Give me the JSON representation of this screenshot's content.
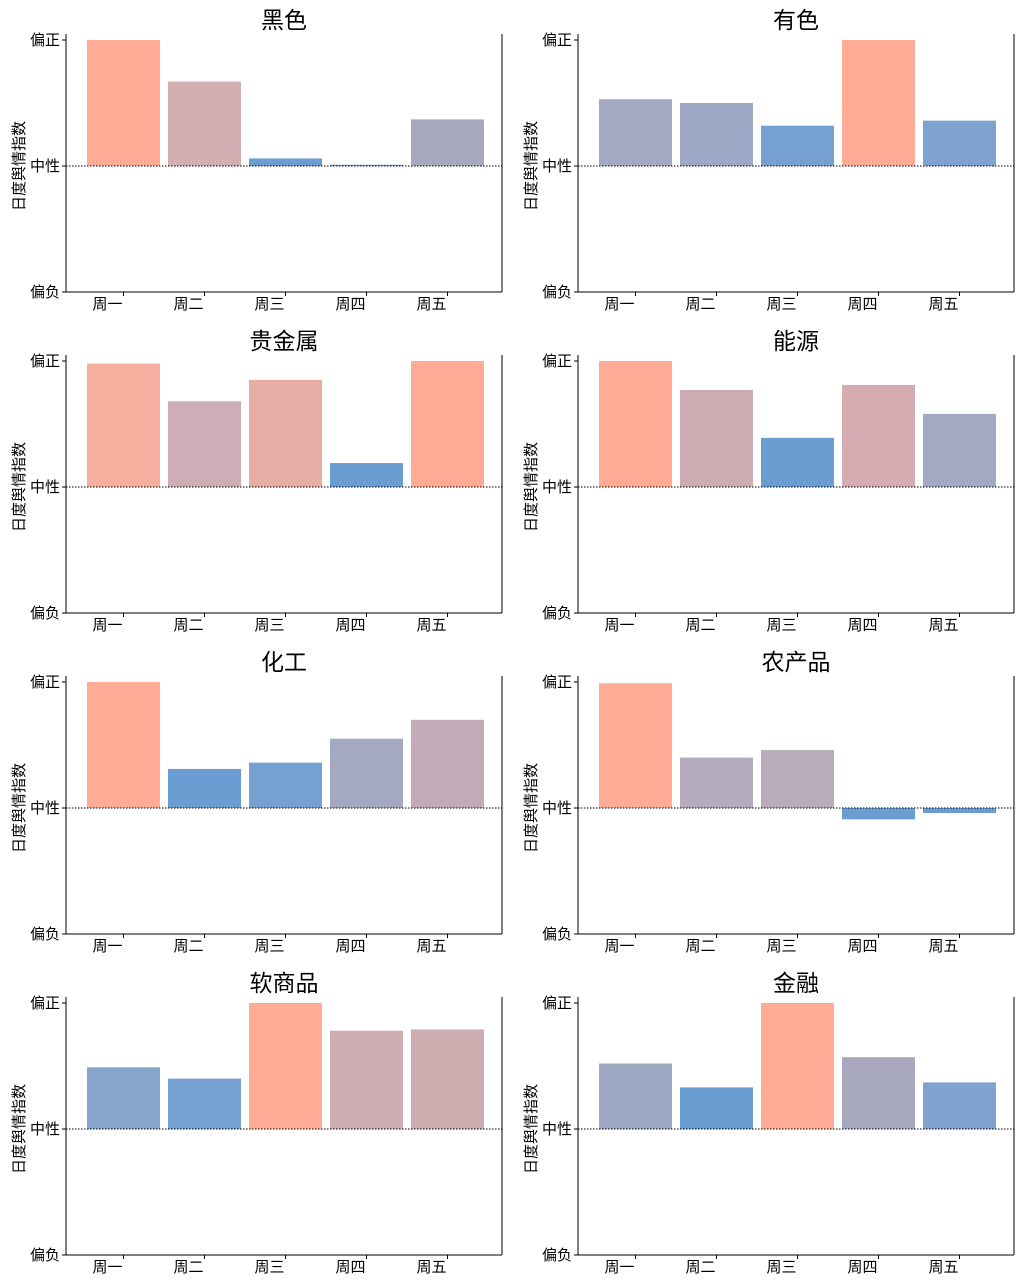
{
  "y_axis_label": "日度舆情指数",
  "y_tick_labels": [
    "偏正",
    "中性",
    "偏负"
  ],
  "palette": {
    "positive": "#FFAB96",
    "negative": "#6A9ED3",
    "neutral_line": "#000000",
    "axis": "#000000"
  },
  "chart_data": [
    {
      "type": "bar",
      "title": "黑色",
      "categories": [
        "周一",
        "周二",
        "周三",
        "周四",
        "周五"
      ],
      "values": [
        1.0,
        0.67,
        0.06,
        0.01,
        0.37
      ],
      "ylim": [
        -1,
        1
      ],
      "ytick_values": [
        1,
        0,
        -1
      ],
      "colors": [
        "#FFAB96",
        "#D3AEB2",
        "#6A9ED3",
        "#6A9ED3",
        "#A7A8BE"
      ]
    },
    {
      "type": "bar",
      "title": "有色",
      "categories": [
        "周一",
        "周二",
        "周三",
        "周四",
        "周五"
      ],
      "values": [
        0.53,
        0.5,
        0.32,
        1.0,
        0.36
      ],
      "ylim": [
        -1,
        1
      ],
      "ytick_values": [
        1,
        0,
        -1
      ],
      "colors": [
        "#A3A9C2",
        "#9DA8C6",
        "#77A0D2",
        "#FFAB96",
        "#7FA2D0"
      ]
    },
    {
      "type": "bar",
      "title": "贵金属",
      "categories": [
        "周一",
        "周二",
        "周三",
        "周四",
        "周五"
      ],
      "values": [
        0.98,
        0.68,
        0.85,
        0.19,
        1.0
      ],
      "ylim": [
        -1,
        1
      ],
      "ytick_values": [
        1,
        0,
        -1
      ],
      "colors": [
        "#F6AE9E",
        "#CEAEB6",
        "#E6ADA5",
        "#6A9ED3",
        "#FFAB96"
      ]
    },
    {
      "type": "bar",
      "title": "能源",
      "categories": [
        "周一",
        "周二",
        "周三",
        "周四",
        "周五"
      ],
      "values": [
        1.0,
        0.77,
        0.39,
        0.81,
        0.58
      ],
      "ylim": [
        -1,
        1
      ],
      "ytick_values": [
        1,
        0,
        -1
      ],
      "colors": [
        "#FFAB96",
        "#CCADB3",
        "#6A9ED3",
        "#D4ACB2",
        "#A2A9C3"
      ]
    },
    {
      "type": "bar",
      "title": "化工",
      "categories": [
        "周一",
        "周二",
        "周三",
        "周四",
        "周五"
      ],
      "values": [
        1.0,
        0.31,
        0.36,
        0.55,
        0.7
      ],
      "ylim": [
        -1,
        1
      ],
      "ytick_values": [
        1,
        0,
        -1
      ],
      "colors": [
        "#FFAB96",
        "#6A9ED3",
        "#75A1D1",
        "#A4A8C1",
        "#C2AAB6"
      ]
    },
    {
      "type": "bar",
      "title": "农产品",
      "categories": [
        "周一",
        "周二",
        "周三",
        "周四",
        "周五"
      ],
      "values": [
        0.99,
        0.4,
        0.46,
        -0.09,
        -0.04
      ],
      "ylim": [
        -1,
        1
      ],
      "ytick_values": [
        1,
        0,
        -1
      ],
      "colors": [
        "#FFAB96",
        "#B4ACBE",
        "#BAABBA",
        "#6A9ED3",
        "#6A9ED3"
      ]
    },
    {
      "type": "bar",
      "title": "软商品",
      "categories": [
        "周一",
        "周二",
        "周三",
        "周四",
        "周五"
      ],
      "values": [
        0.49,
        0.4,
        1.0,
        0.78,
        0.79
      ],
      "ylim": [
        -1,
        1
      ],
      "ytick_values": [
        1,
        0,
        -1
      ],
      "colors": [
        "#87A5CB",
        "#76A2D2",
        "#FFAB96",
        "#CCADB2",
        "#CEADB1"
      ]
    },
    {
      "type": "bar",
      "title": "金融",
      "categories": [
        "周一",
        "周二",
        "周三",
        "周四",
        "周五"
      ],
      "values": [
        0.52,
        0.33,
        1.0,
        0.57,
        0.37
      ],
      "ylim": [
        -1,
        1
      ],
      "ytick_values": [
        1,
        0,
        -1
      ],
      "colors": [
        "#9EA9C4",
        "#6A9ED3",
        "#FFAB96",
        "#A7A8BE",
        "#7FA2D0"
      ]
    }
  ]
}
